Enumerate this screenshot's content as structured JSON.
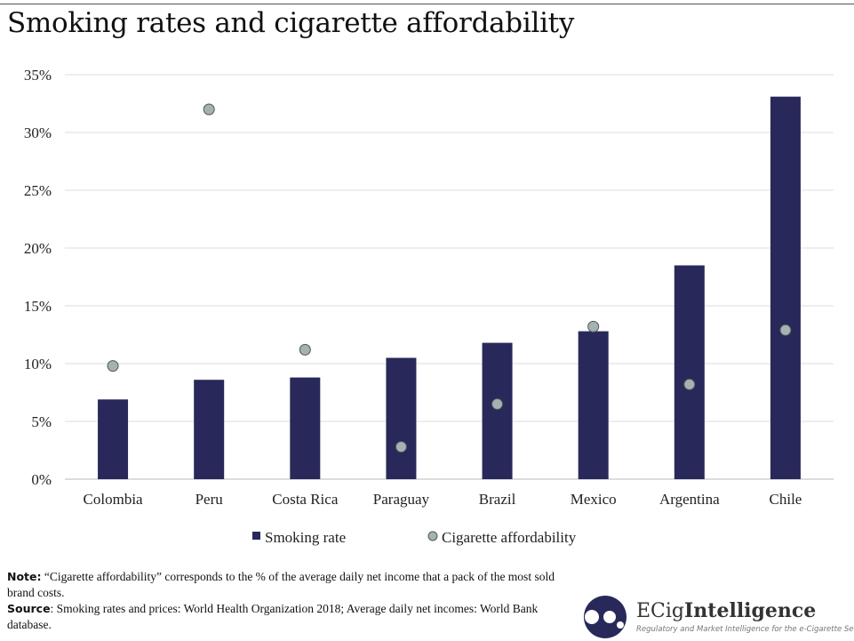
{
  "title": "Smoking rates and cigarette affordability",
  "chart_data": {
    "type": "bar",
    "title": "Smoking rates and cigarette affordability",
    "categories": [
      "Colombia",
      "Peru",
      "Costa Rica",
      "Paraguay",
      "Brazil",
      "Mexico",
      "Argentina",
      "Chile"
    ],
    "series": [
      {
        "name": "Smoking rate",
        "type": "bar",
        "color": "#28295a",
        "values": [
          6.9,
          8.6,
          8.8,
          10.5,
          11.8,
          12.8,
          18.5,
          33.1
        ]
      },
      {
        "name": "Cigarette affordability",
        "type": "scatter",
        "color": "#a3b3b3",
        "values": [
          9.8,
          32.0,
          11.2,
          2.8,
          6.5,
          13.2,
          8.2,
          12.9
        ]
      }
    ],
    "ylim": [
      0,
      35
    ],
    "yticks": [
      "0%",
      "5%",
      "10%",
      "15%",
      "20%",
      "25%",
      "30%",
      "35%"
    ],
    "grid": true,
    "legend": "bottom"
  },
  "notes": {
    "note_label": "Note:",
    "note_text": " “Cigarette affordability” corresponds to the % of the average daily net income that a pack of the most sold brand costs.",
    "source_label": "Source",
    "source_text": ": Smoking rates and prices: World Health Organization 2018; Average daily net incomes: World Bank database."
  },
  "logo": {
    "brand_light": "ECig",
    "brand_bold": "Intelligence",
    "tagline": "Regulatory and Market Intelligence for the e-Cigarette Sector"
  }
}
